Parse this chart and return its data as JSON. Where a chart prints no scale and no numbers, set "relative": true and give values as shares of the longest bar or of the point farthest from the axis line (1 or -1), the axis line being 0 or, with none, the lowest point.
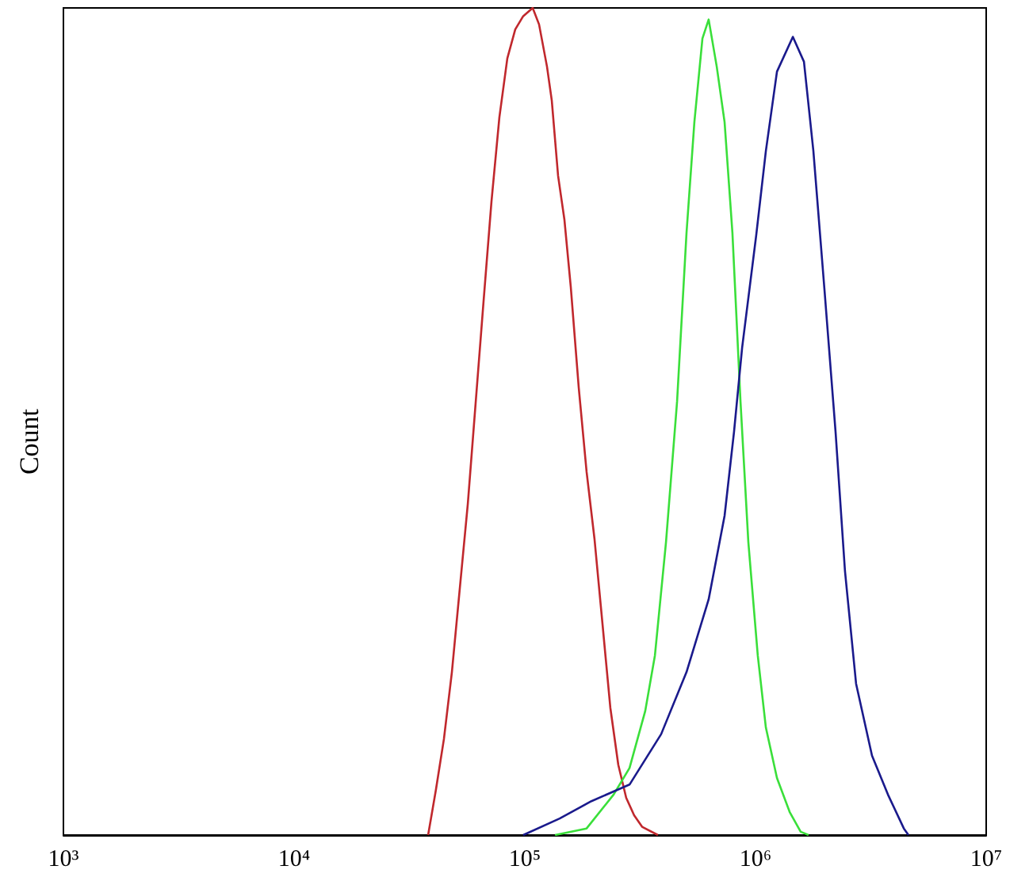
{
  "chart_data": {
    "type": "line",
    "relative": true,
    "ylabel": "Count",
    "log": "x",
    "grid": false,
    "marker": "none",
    "line_style": "solid",
    "xlim": [
      1000,
      10000000
    ],
    "xticks": [
      {
        "value": 1000,
        "label": "10³"
      },
      {
        "value": 10000,
        "label": "10⁴"
      },
      {
        "value": 100000,
        "label": "10⁵"
      },
      {
        "value": 1000000,
        "label": "10⁶"
      },
      {
        "value": 10000000,
        "label": "10⁷"
      }
    ],
    "series": [
      {
        "color": "#c0282d",
        "x": [
          38100,
          41200,
          44600,
          48300,
          52300,
          56600,
          61200,
          66200,
          71700,
          77600,
          84000,
          90900,
          98400,
          108200,
          115300,
          124800,
          130900,
          139400,
          148500,
          158200,
          171300,
          185300,
          200500,
          217000,
          234800,
          254200,
          275100,
          297700,
          322400,
          377600
        ],
        "values": [
          0,
          0.055,
          0.116,
          0.197,
          0.299,
          0.4,
          0.522,
          0.644,
          0.766,
          0.868,
          0.939,
          0.974,
          0.99,
          1,
          0.98,
          0.929,
          0.888,
          0.797,
          0.744,
          0.663,
          0.541,
          0.439,
          0.358,
          0.256,
          0.154,
          0.085,
          0.045,
          0.024,
          0.01,
          0
        ]
      },
      {
        "color": "#3adf3a",
        "x": [
          135200,
          185300,
          242700,
          284400,
          332700,
          366400,
          409300,
          457100,
          502300,
          543300,
          588800,
          626600,
          679200,
          734500,
          794300,
          861000,
          931100,
          1023000,
          1109000,
          1239000,
          1406000,
          1570000,
          1698000
        ],
        "values": [
          0,
          0.008,
          0.049,
          0.081,
          0.15,
          0.217,
          0.354,
          0.524,
          0.728,
          0.862,
          0.963,
          0.986,
          0.929,
          0.862,
          0.728,
          0.524,
          0.354,
          0.217,
          0.13,
          0.069,
          0.028,
          0.004,
          0
        ]
      },
      {
        "color": "#1a1a8c",
        "x": [
          98400,
          141600,
          194500,
          284400,
          390000,
          502300,
          626600,
          734500,
          807400,
          874900,
          1007000,
          1109000,
          1239000,
          1452000,
          1622000,
          1782000,
          1991000,
          2223000,
          2443000,
          2729000,
          3199000,
          3750000,
          4395000,
          4603000
        ],
        "values": [
          0,
          0.02,
          0.041,
          0.061,
          0.122,
          0.197,
          0.285,
          0.386,
          0.488,
          0.589,
          0.725,
          0.827,
          0.923,
          0.965,
          0.935,
          0.827,
          0.659,
          0.488,
          0.319,
          0.183,
          0.096,
          0.049,
          0.008,
          0
        ]
      }
    ]
  }
}
